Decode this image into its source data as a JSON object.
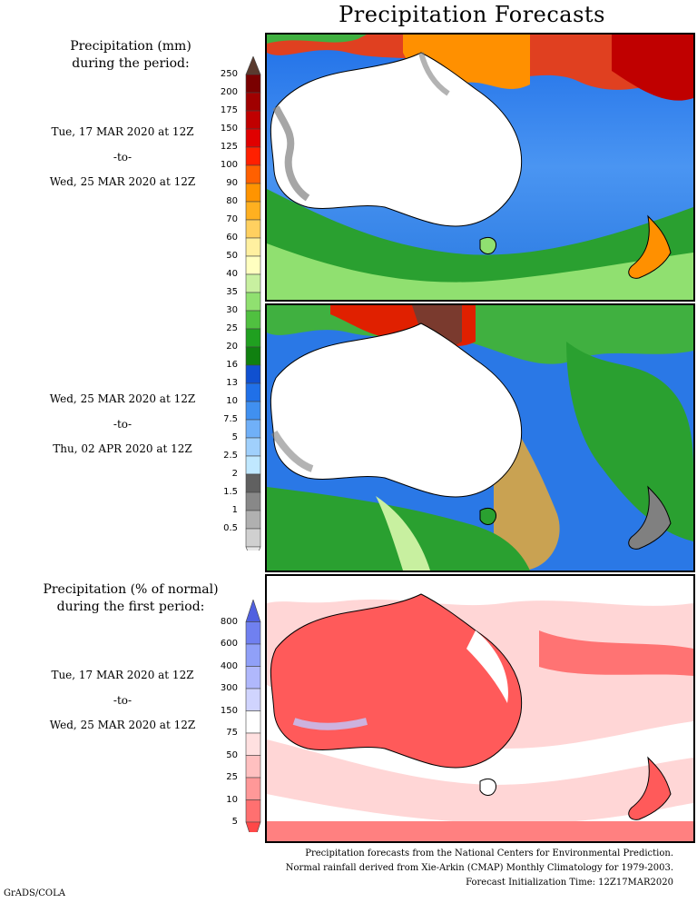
{
  "title": "Precipitation Forecasts",
  "section1": {
    "heading_line1": "Precipitation (mm)",
    "heading_line2": "during the period:",
    "period1": {
      "start": "Tue, 17 MAR 2020 at 12Z",
      "to": "-to-",
      "end": "Wed, 25 MAR 2020 at 12Z"
    },
    "period2": {
      "start": "Wed, 25 MAR 2020 at 12Z",
      "to": "-to-",
      "end": "Thu, 02 APR 2020 at 12Z"
    }
  },
  "section2": {
    "heading_line1": "Precipitation (% of normal)",
    "heading_line2": "during the first period:",
    "period": {
      "start": "Tue, 17 MAR 2020 at 12Z",
      "to": "-to-",
      "end": "Wed, 25 MAR 2020 at 12Z"
    }
  },
  "precip_scale": {
    "ticks": [
      "250",
      "200",
      "175",
      "150",
      "125",
      "100",
      "90",
      "80",
      "70",
      "60",
      "50",
      "40",
      "35",
      "30",
      "25",
      "20",
      "16",
      "13",
      "10",
      "7.5",
      "5",
      "2.5",
      "2",
      "1.5",
      "1",
      "0.5"
    ],
    "colors": [
      "#5a3a2e",
      "#7a0000",
      "#a00000",
      "#c00000",
      "#e00000",
      "#ff2000",
      "#ff6000",
      "#ff9400",
      "#ffb020",
      "#ffd060",
      "#fff0a0",
      "#ffffc0",
      "#c8f0a0",
      "#90e070",
      "#50c040",
      "#20a020",
      "#108010",
      "#1050d0",
      "#2070e8",
      "#4090f0",
      "#70b0f8",
      "#a0d0fc",
      "#c0e8ff",
      "#606060",
      "#888888",
      "#b0b0b0",
      "#d0d0d0",
      "#e8e8e8"
    ]
  },
  "anomaly_scale": {
    "ticks": [
      "800",
      "600",
      "400",
      "300",
      "150",
      "75",
      "50",
      "25",
      "10",
      "5"
    ],
    "colors": [
      "#5060e0",
      "#7080f0",
      "#90a0f8",
      "#b0b8fc",
      "#d0d4fe",
      "#ffffff",
      "#ffe0e0",
      "#ffc0c0",
      "#ff9898",
      "#ff7070",
      "#ff4848"
    ]
  },
  "footer": {
    "line1": "Precipitation forecasts from the National Centers for Environmental Prediction.",
    "line2": "Normal rainfall derived from Xie-Arkin (CMAP) Monthly Climatology for 1979-2003.",
    "line3": "Forecast Initialization Time: 12Z17MAR2020"
  },
  "credit": "GrADS/COLA"
}
